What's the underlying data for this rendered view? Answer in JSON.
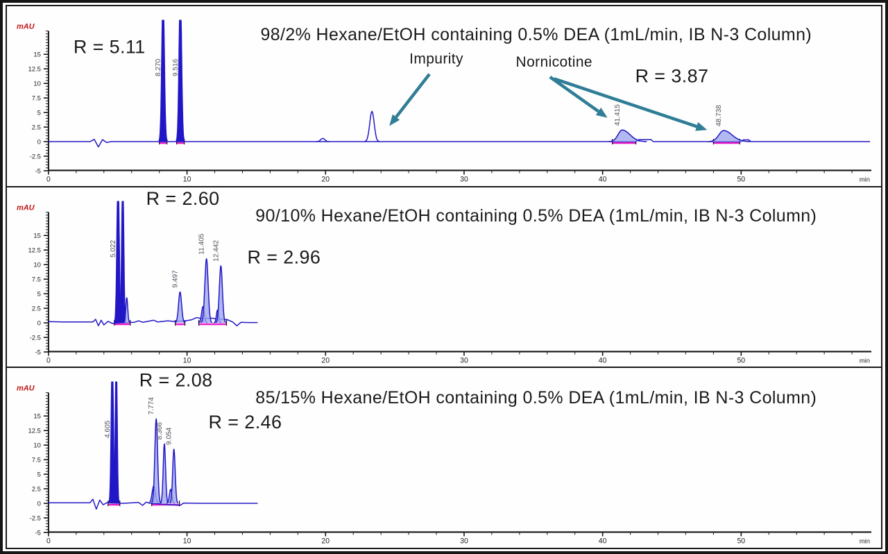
{
  "figure": {
    "description": "Stack of three HPLC chromatograms comparing mobile phase compositions",
    "x_axis_unit": "min",
    "y_axis_unit": "mAU"
  },
  "axes": {
    "x_major_ticks": [
      0,
      10,
      20,
      30,
      40,
      50
    ],
    "x_minor_step": 2,
    "x_max": 58,
    "x_unit_label": "min",
    "y_tick_labels": [
      15,
      12.5,
      10,
      7.5,
      5,
      2.5,
      0,
      -2.5,
      -5
    ],
    "y_axis_label": "mAU"
  },
  "colors": {
    "trace": "#2217c6",
    "peak_fill_light": "#9ea8ec",
    "magenta": "#e81cc8",
    "arrow": "#2f7d96",
    "text": "#1a1a1a",
    "axis": "#161616",
    "mau_label": "#c41414",
    "peak_label": "#52525e"
  },
  "chart_data": [
    {
      "type": "line",
      "kind": "chromatogram",
      "title": "98/2% Hexane/EtOH containing 0.5% DEA (1mL/min, IB N-3 Column)",
      "xlabel": "min",
      "ylabel": "mAU",
      "xlim": [
        0,
        59
      ],
      "ylim": [
        -5,
        20
      ],
      "trace_end_min": 59.3,
      "peaks": [
        {
          "rt": 8.27,
          "label": "8.270",
          "height_mau": 26,
          "sigma": 0.09,
          "clipped": true,
          "fill": "solid"
        },
        {
          "rt": 9.516,
          "label": "9.516",
          "height_mau": 26,
          "sigma": 0.09,
          "clipped": true,
          "fill": "solid"
        },
        {
          "rt": 19.8,
          "height_mau": 0.55,
          "sigma": 0.15,
          "fill": "none"
        },
        {
          "rt": 23.35,
          "height_mau": 5.2,
          "sigma": 0.16,
          "fill": "none"
        },
        {
          "rt": 41.415,
          "label": "41.415",
          "height_mau": 2.0,
          "sigma_left": 0.3,
          "sigma_right": 0.55,
          "fill": "light"
        },
        {
          "rt": 48.738,
          "label": "48.738",
          "height_mau": 1.9,
          "sigma_left": 0.35,
          "sigma_right": 0.6,
          "fill": "light"
        }
      ],
      "baseline_marks": [
        [
          8.0,
          8.55
        ],
        [
          9.25,
          9.8
        ],
        [
          40.7,
          42.4
        ],
        [
          48.0,
          49.9
        ]
      ],
      "trace_points": [
        [
          0,
          0
        ],
        [
          3.0,
          0
        ],
        [
          3.3,
          0.4
        ],
        [
          3.6,
          -0.9
        ],
        [
          3.9,
          0.35
        ],
        [
          4.2,
          -0.15
        ],
        [
          4.5,
          0
        ],
        [
          42.45,
          0
        ],
        [
          42.6,
          0.35
        ],
        [
          43.5,
          0.35
        ],
        [
          43.65,
          0
        ],
        [
          50.0,
          0
        ],
        [
          50.15,
          0.3
        ],
        [
          50.55,
          0.3
        ],
        [
          50.7,
          0
        ],
        [
          59.3,
          0
        ]
      ],
      "annotations": [
        {
          "name": "resolution-label-1",
          "text": "R = 5.11",
          "x": 4.4,
          "y": 15.2,
          "size": 27
        },
        {
          "name": "panel-title",
          "text": "98/2% Hexane/EtOH containing 0.5% DEA (1mL/min, IB N-3 Column)",
          "x": 35.2,
          "y": 17.4,
          "size": 25
        },
        {
          "name": "impurity-label",
          "text": "Impurity",
          "x": 28.0,
          "y": 13.4,
          "size": 21
        },
        {
          "name": "nornicotine-label",
          "text": "Nornicotine",
          "x": 36.5,
          "y": 12.9,
          "size": 21
        },
        {
          "name": "resolution-label-2",
          "text": "R = 3.87",
          "x": 45.0,
          "y": 10.2,
          "size": 27
        }
      ],
      "arrows": [
        {
          "name": "impurity-arrow",
          "from": [
            27.5,
            11.6
          ],
          "to": [
            24.6,
            2.7
          ]
        },
        {
          "name": "nornicotine-arrow-1",
          "from": [
            36.2,
            11.1
          ],
          "to": [
            40.35,
            4.1
          ]
        },
        {
          "name": "nornicotine-arrow-2",
          "from": [
            36.5,
            10.8
          ],
          "to": [
            47.55,
            2.0
          ]
        }
      ]
    },
    {
      "type": "line",
      "kind": "chromatogram",
      "title": "90/10% Hexane/EtOH containing 0.5% DEA (1mL/min, IB N-3 Column)",
      "xlabel": "min",
      "ylabel": "mAU",
      "xlim": [
        0,
        59
      ],
      "ylim": [
        -5,
        20
      ],
      "trace_end_min": 15.1,
      "peaks": [
        {
          "rt": 5.022,
          "label": "5.022",
          "height_mau": 26,
          "sigma": 0.08,
          "clipped": true,
          "fill": "solid"
        },
        {
          "rt": 5.36,
          "height_mau": 26,
          "sigma": 0.07,
          "clipped": true,
          "fill": "solid"
        },
        {
          "rt": 5.65,
          "height_mau": 4.3,
          "sigma": 0.07,
          "fill": "light"
        },
        {
          "rt": 9.497,
          "label": "9.497",
          "height_mau": 5.3,
          "sigma": 0.11,
          "fill": "light"
        },
        {
          "rt": 11.15,
          "height_mau": 2.8,
          "sigma": 0.1,
          "fill": "light"
        },
        {
          "rt": 11.405,
          "label": "11.405",
          "height_mau": 11.0,
          "sigma": 0.12,
          "fill": "light"
        },
        {
          "rt": 12.2,
          "height_mau": 2.2,
          "sigma": 0.08,
          "fill": "light"
        },
        {
          "rt": 12.442,
          "label": "12.442",
          "height_mau": 9.8,
          "sigma": 0.11,
          "fill": "light"
        }
      ],
      "baseline_marks": [
        [
          4.75,
          5.9
        ],
        [
          9.15,
          9.85
        ],
        [
          10.85,
          12.85
        ]
      ],
      "trace_points": [
        [
          0,
          0.2
        ],
        [
          1.0,
          0.15
        ],
        [
          3.2,
          0.15
        ],
        [
          3.4,
          0.6
        ],
        [
          3.6,
          -0.5
        ],
        [
          3.8,
          0.45
        ],
        [
          4.0,
          -0.35
        ],
        [
          4.3,
          0.25
        ],
        [
          4.6,
          -0.1
        ],
        [
          5.0,
          0
        ],
        [
          6.2,
          0.1
        ],
        [
          6.5,
          0.35
        ],
        [
          6.8,
          0.1
        ],
        [
          7.6,
          0.45
        ],
        [
          7.9,
          0.15
        ],
        [
          8.6,
          0.35
        ],
        [
          9.0,
          0.25
        ],
        [
          9.9,
          0.35
        ],
        [
          10.3,
          0.5
        ],
        [
          10.7,
          0.9
        ],
        [
          11.0,
          0.75
        ],
        [
          11.8,
          0.8
        ],
        [
          12.1,
          0.7
        ],
        [
          12.9,
          0.55
        ],
        [
          13.3,
          0.15
        ],
        [
          13.6,
          -0.5
        ],
        [
          13.9,
          0.1
        ],
        [
          14.4,
          0.05
        ],
        [
          15.1,
          0.05
        ]
      ],
      "annotations": [
        {
          "name": "resolution-label-1",
          "text": "R = 2.60",
          "x": 9.7,
          "y": 20.3,
          "size": 27
        },
        {
          "name": "panel-title",
          "text": "90/10% Hexane/EtOH containing 0.5% DEA (1mL/min, IB N-3 Column)",
          "x": 35.2,
          "y": 17.4,
          "size": 25
        },
        {
          "name": "resolution-label-2",
          "text": "R = 2.96",
          "x": 17.0,
          "y": 10.2,
          "size": 27
        }
      ],
      "arrows": []
    },
    {
      "type": "line",
      "kind": "chromatogram",
      "title": "85/15% Hexane/EtOH containing 0.5% DEA (1mL/min, IB N-3 Column)",
      "xlabel": "min",
      "ylabel": "mAU",
      "xlim": [
        0,
        59
      ],
      "ylim": [
        -5,
        20
      ],
      "trace_end_min": 15.1,
      "peaks": [
        {
          "rt": 4.605,
          "label": "4.605",
          "height_mau": 26,
          "sigma": 0.075,
          "clipped": true,
          "fill": "solid"
        },
        {
          "rt": 4.89,
          "height_mau": 26,
          "sigma": 0.065,
          "clipped": true,
          "fill": "solid"
        },
        {
          "rt": 7.6,
          "height_mau": 3.0,
          "sigma": 0.12,
          "fill": "light"
        },
        {
          "rt": 7.774,
          "label": "7.774",
          "height_mau": 14.5,
          "sigma": 0.1,
          "fill": "light"
        },
        {
          "rt": 8.366,
          "label": "8.366",
          "height_mau": 10.2,
          "sigma": 0.085,
          "fill": "light"
        },
        {
          "rt": 8.82,
          "height_mau": 2.4,
          "sigma": 0.09,
          "fill": "light"
        },
        {
          "rt": 9.054,
          "label": "9.054",
          "height_mau": 9.3,
          "sigma": 0.09,
          "fill": "light"
        }
      ],
      "baseline_marks": [
        [
          4.3,
          5.15
        ],
        [
          7.45,
          9.45
        ]
      ],
      "trace_points": [
        [
          0,
          0.1
        ],
        [
          3.0,
          0.1
        ],
        [
          3.2,
          0.7
        ],
        [
          3.45,
          -1.0
        ],
        [
          3.7,
          0.55
        ],
        [
          3.95,
          -0.25
        ],
        [
          4.2,
          0.1
        ],
        [
          5.4,
          0
        ],
        [
          6.5,
          0.15
        ],
        [
          6.8,
          -0.35
        ],
        [
          7.05,
          0.2
        ],
        [
          7.35,
          0
        ],
        [
          9.5,
          -0.35
        ],
        [
          9.75,
          0.05
        ],
        [
          11.0,
          0
        ],
        [
          15.1,
          0
        ]
      ],
      "annotations": [
        {
          "name": "resolution-label-1",
          "text": "R = 2.08",
          "x": 9.2,
          "y": 20.1,
          "size": 27
        },
        {
          "name": "panel-title",
          "text": "85/15% Hexane/EtOH containing 0.5% DEA (1mL/min, IB N-3 Column)",
          "x": 35.2,
          "y": 17.2,
          "size": 25
        },
        {
          "name": "resolution-label-2",
          "text": "R = 2.46",
          "x": 14.2,
          "y": 12.9,
          "size": 27
        }
      ],
      "arrows": []
    }
  ]
}
